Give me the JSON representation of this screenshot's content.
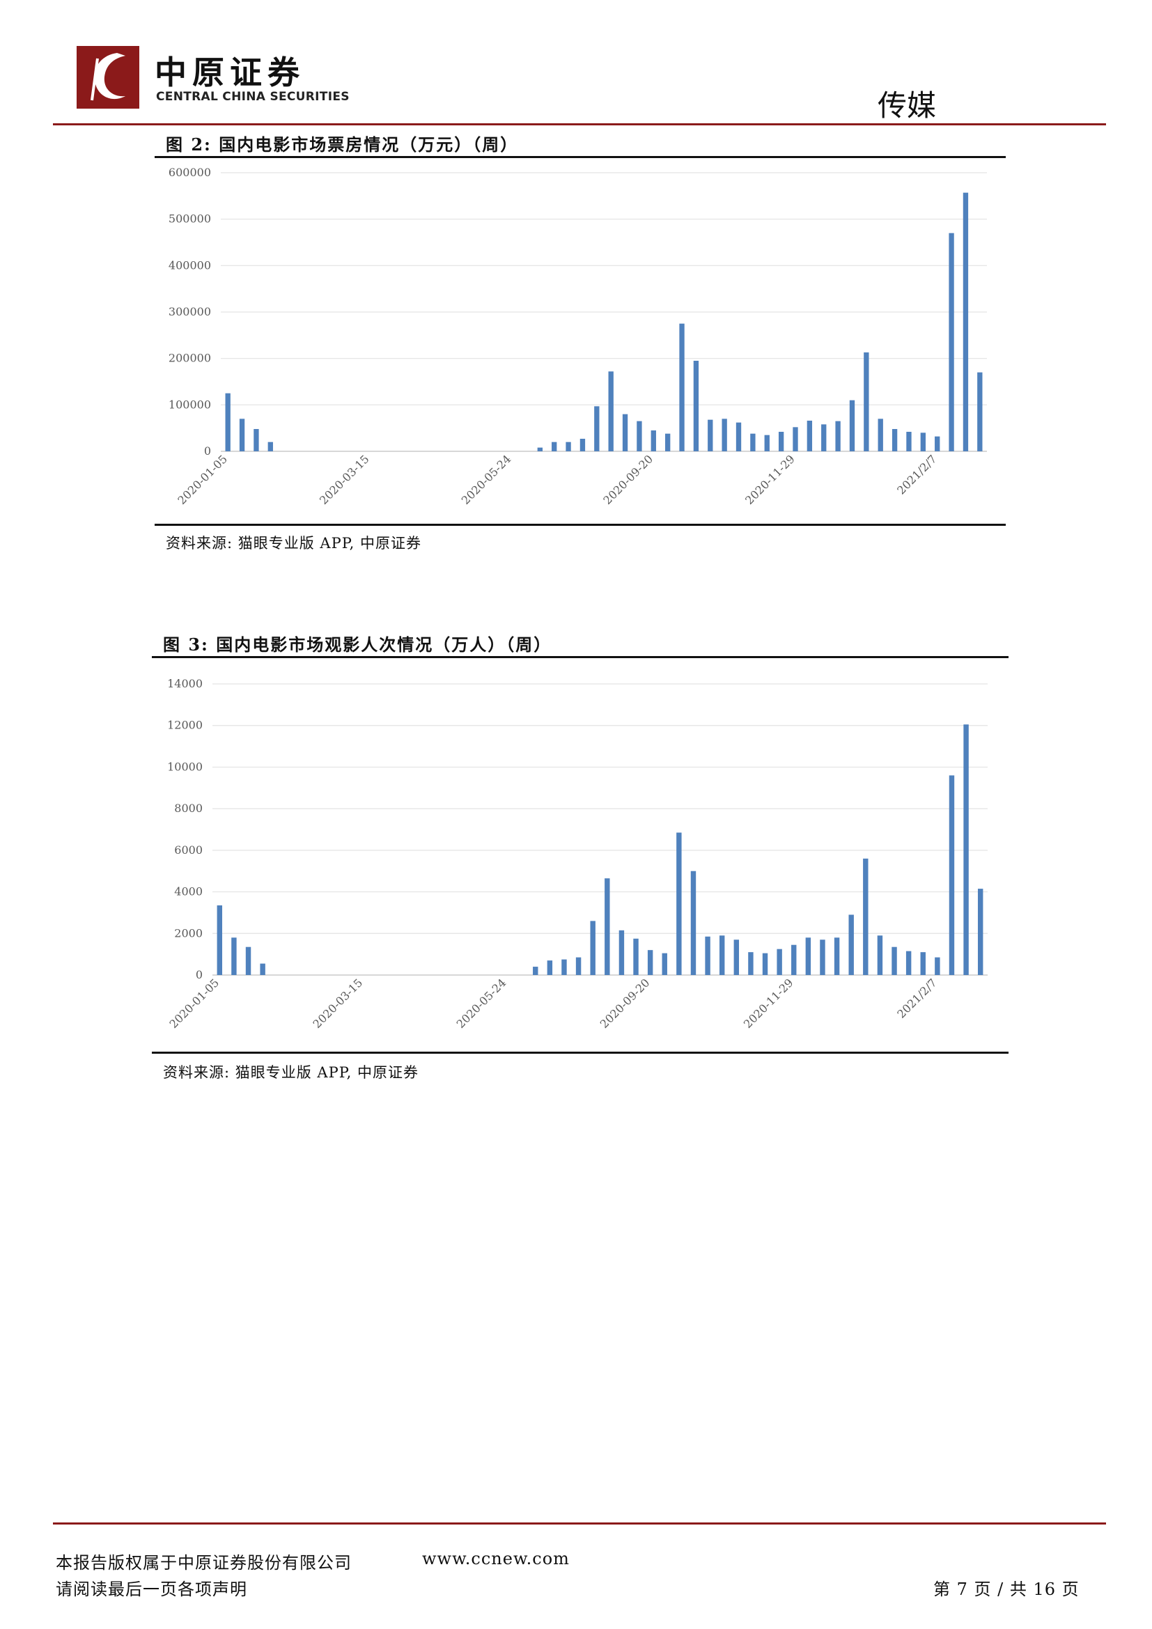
{
  "header": {
    "brand_cn": "中原证券",
    "brand_en": "CENTRAL CHINA SECURITIES",
    "section": "传媒",
    "accent_color": "#8b1a1a"
  },
  "figures": [
    {
      "title": "图 2:  国内电影市场票房情况（万元）（周）",
      "source": "资料来源:  猫眼专业版 APP,  中原证券"
    },
    {
      "title": "图 3:  国内电影市场观影人次情况（万人）（周）",
      "source": "资料来源:  猫眼专业版 APP,  中原证券"
    }
  ],
  "chart_data": [
    {
      "type": "bar",
      "title": "图 2:  国内电影市场票房情况（万元）（周）",
      "bar_color": "#4f81bd",
      "ylim": [
        0,
        600000
      ],
      "yticks": [
        0,
        100000,
        200000,
        300000,
        400000,
        500000,
        600000
      ],
      "grid": true,
      "x_tick_labels": [
        "2020-01-05",
        "2020-03-15",
        "2020-05-24",
        "2020-09-20",
        "2020-11-29",
        "2021/2/7"
      ],
      "values": [
        125000,
        70000,
        48000,
        20000,
        0,
        0,
        0,
        0,
        0,
        0,
        0,
        0,
        0,
        0,
        0,
        0,
        0,
        0,
        0,
        0,
        0,
        0,
        8000,
        20000,
        20000,
        27000,
        97000,
        172000,
        80000,
        65000,
        45000,
        38000,
        275000,
        195000,
        68000,
        70000,
        62000,
        38000,
        35000,
        42000,
        52000,
        66000,
        58000,
        65000,
        110000,
        213000,
        70000,
        48000,
        42000,
        40000,
        32000,
        470000,
        557000,
        170000
      ]
    },
    {
      "type": "bar",
      "title": "图 3:  国内电影市场观影人次情况（万人）（周）",
      "bar_color": "#4f81bd",
      "ylim": [
        0,
        14000
      ],
      "yticks": [
        0,
        2000,
        4000,
        6000,
        8000,
        10000,
        12000,
        14000
      ],
      "grid": true,
      "x_tick_labels": [
        "2020-01-05",
        "2020-03-15",
        "2020-05-24",
        "2020-09-20",
        "2020-11-29",
        "2021/2/7"
      ],
      "values": [
        3350,
        1800,
        1350,
        550,
        0,
        0,
        0,
        0,
        0,
        0,
        0,
        0,
        0,
        0,
        0,
        0,
        0,
        0,
        0,
        0,
        0,
        0,
        400,
        700,
        750,
        850,
        2600,
        4650,
        2150,
        1750,
        1200,
        1050,
        6850,
        5000,
        1850,
        1900,
        1700,
        1100,
        1050,
        1250,
        1450,
        1800,
        1700,
        1800,
        2900,
        5600,
        1900,
        1350,
        1150,
        1100,
        850,
        9600,
        12050,
        4150
      ]
    }
  ],
  "footer": {
    "copyright": "本报告版权属于中原证券股份有限公司",
    "website": "www.ccnew.com",
    "notice": "请阅读最后一页各项声明",
    "page": "第 7 页  /  共 16 页"
  }
}
